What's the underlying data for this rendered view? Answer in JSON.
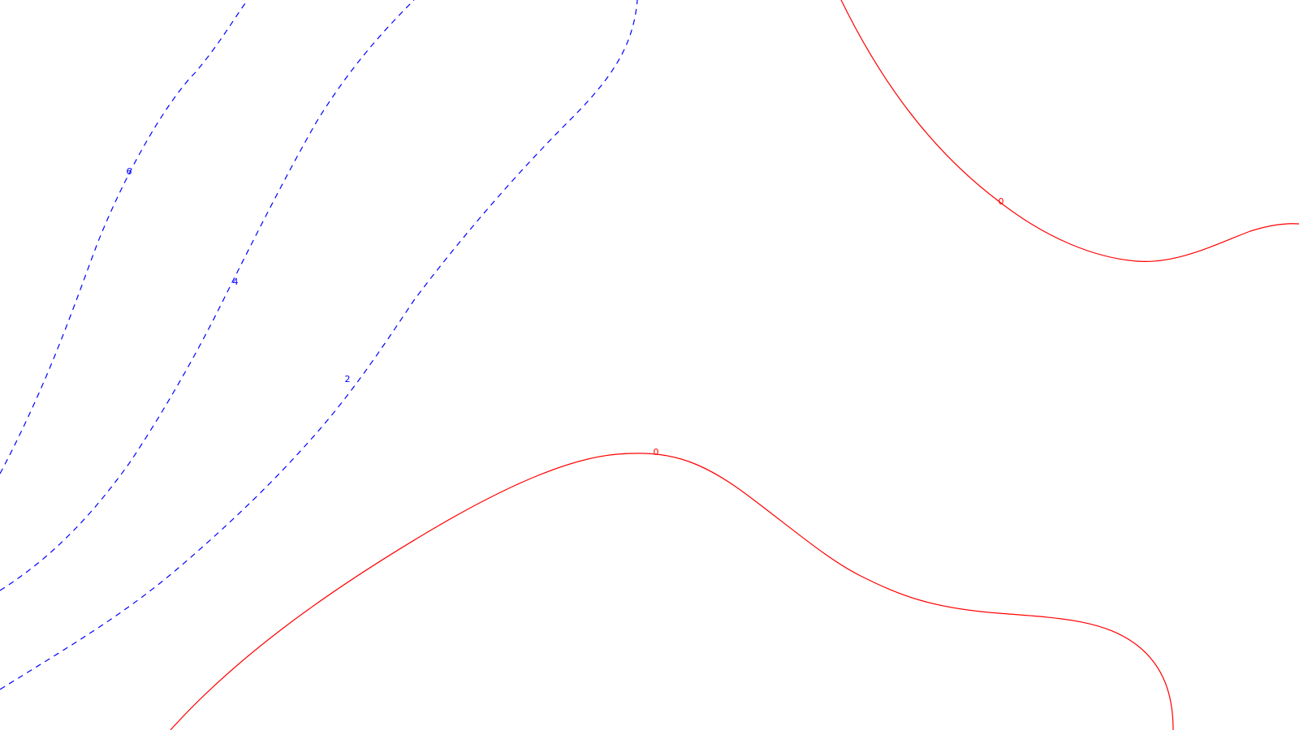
{
  "map": {
    "background_color": "#ffffff",
    "contours": [
      {
        "id": "contour-6",
        "label": "6",
        "style": "dashed",
        "color": "#0000ff"
      },
      {
        "id": "contour-4",
        "label": "4",
        "style": "dashed",
        "color": "#0000ff"
      },
      {
        "id": "contour-2",
        "label": "2",
        "style": "dashed",
        "color": "#0000ff"
      },
      {
        "id": "contour-0-upper",
        "label": "0",
        "style": "solid",
        "color": "#ff0000"
      },
      {
        "id": "contour-0-lower",
        "label": "0",
        "style": "solid",
        "color": "#ff0000"
      }
    ]
  }
}
